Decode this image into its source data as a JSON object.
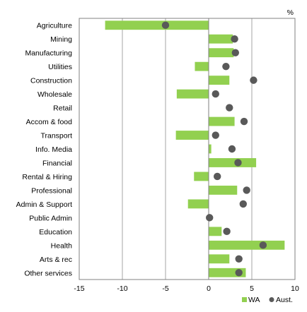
{
  "chart_data": {
    "type": "bar",
    "unit": "%",
    "categories": [
      "Agriculture",
      "Mining",
      "Manufacturing",
      "Utilities",
      "Construction",
      "Wholesale",
      "Retail",
      "Accom & food",
      "Transport",
      "Info. Media",
      "Financial",
      "Rental & Hiring",
      "Professional",
      "Admin & Support",
      "Public Admin",
      "Education",
      "Health",
      "Arts & rec",
      "Other services"
    ],
    "series": [
      {
        "name": "WA",
        "marker": "bar",
        "color": "#92d050",
        "values": [
          -12.0,
          2.8,
          2.9,
          -1.6,
          2.4,
          -3.7,
          0.0,
          3.0,
          -3.8,
          0.3,
          5.5,
          -1.7,
          3.3,
          -2.4,
          0.0,
          1.5,
          8.8,
          2.4,
          4.3
        ]
      },
      {
        "name": "Aust.",
        "marker": "dot",
        "color": "#595959",
        "values": [
          -5.0,
          3.0,
          3.1,
          2.0,
          5.2,
          0.8,
          2.4,
          4.1,
          0.8,
          2.7,
          3.4,
          1.0,
          4.4,
          4.0,
          0.1,
          2.1,
          6.3,
          3.5,
          3.5
        ]
      }
    ],
    "xlim": [
      -15,
      10
    ],
    "xticks": [
      -15,
      -10,
      -5,
      0,
      5,
      10
    ],
    "grid": true,
    "legend_position": "bottom-right"
  }
}
